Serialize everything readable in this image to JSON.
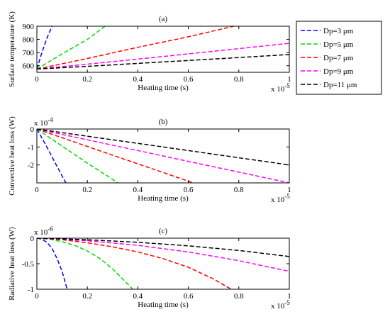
{
  "legend": {
    "entries": [
      {
        "label": "Dp=3 μm",
        "color": "#0000ff"
      },
      {
        "label": "Dp=5 μm",
        "color": "#00dd00"
      },
      {
        "label": "Dp=7 μm",
        "color": "#ff0000"
      },
      {
        "label": "Dp=9 μm",
        "color": "#ff00ff"
      },
      {
        "label": "Dp=11 μm",
        "color": "#000000"
      }
    ],
    "placement": "right"
  },
  "chart_data": [
    {
      "type": "line",
      "title": "(a)",
      "xlabel": "Heating time (s)",
      "ylabel": "Surface temperature (K)",
      "x_multiplier": "x 10",
      "x_exponent": "-5",
      "xlim": [
        0,
        1
      ],
      "ylim": [
        550,
        900
      ],
      "xticks": [
        0,
        0.2,
        0.4,
        0.6,
        0.8,
        1
      ],
      "yticks": [
        600,
        700,
        800,
        900
      ],
      "grid": false,
      "series": [
        {
          "name": "Dp=3 μm",
          "color": "#0000ff",
          "x": [
            0,
            0.02,
            0.04,
            0.06
          ],
          "y": [
            575,
            700,
            810,
            900
          ]
        },
        {
          "name": "Dp=5 μm",
          "color": "#00dd00",
          "x": [
            0,
            0.1,
            0.2,
            0.27
          ],
          "y": [
            575,
            690,
            800,
            900
          ]
        },
        {
          "name": "Dp=7 μm",
          "color": "#ff0000",
          "x": [
            0,
            0.2,
            0.4,
            0.6,
            0.78
          ],
          "y": [
            575,
            655,
            740,
            820,
            900
          ]
        },
        {
          "name": "Dp=9 μm",
          "color": "#ff00ff",
          "x": [
            0,
            0.2,
            0.4,
            0.6,
            0.8,
            1
          ],
          "y": [
            575,
            612,
            650,
            690,
            730,
            770
          ]
        },
        {
          "name": "Dp=11 μm",
          "color": "#000000",
          "x": [
            0,
            0.2,
            0.4,
            0.6,
            0.8,
            1
          ],
          "y": [
            575,
            595,
            618,
            640,
            662,
            685
          ]
        }
      ]
    },
    {
      "type": "line",
      "title": "(b)",
      "xlabel": "Heating time (s)",
      "ylabel": "Convective heat loss (W)",
      "y_multiplier": "x 10",
      "y_exponent": "-4",
      "x_multiplier": "x 10",
      "x_exponent": "-5",
      "xlim": [
        0,
        1
      ],
      "ylim": [
        -3,
        0
      ],
      "xticks": [
        0,
        0.2,
        0.4,
        0.6,
        0.8,
        1
      ],
      "yticks": [
        0,
        -1,
        -2
      ],
      "grid": false,
      "series": [
        {
          "name": "Dp=3 μm",
          "color": "#0000ff",
          "x": [
            0,
            0.03,
            0.06,
            0.09,
            0.115
          ],
          "y": [
            0,
            -0.75,
            -1.55,
            -2.35,
            -3
          ]
        },
        {
          "name": "Dp=5 μm",
          "color": "#00dd00",
          "x": [
            0,
            0.1,
            0.2,
            0.3,
            0.32
          ],
          "y": [
            0,
            -0.95,
            -1.9,
            -2.8,
            -3
          ]
        },
        {
          "name": "Dp=7 μm",
          "color": "#ff0000",
          "x": [
            0,
            0.2,
            0.4,
            0.62
          ],
          "y": [
            0,
            -0.97,
            -1.94,
            -3
          ]
        },
        {
          "name": "Dp=9 μm",
          "color": "#ff00ff",
          "x": [
            0,
            0.25,
            0.5,
            0.75,
            1
          ],
          "y": [
            0,
            -0.75,
            -1.5,
            -2.25,
            -3
          ]
        },
        {
          "name": "Dp=11 μm",
          "color": "#000000",
          "x": [
            0,
            0.25,
            0.5,
            0.75,
            1
          ],
          "y": [
            0,
            -0.5,
            -1,
            -1.5,
            -2
          ]
        }
      ]
    },
    {
      "type": "line",
      "title": "(c)",
      "xlabel": "Heating time (s)",
      "ylabel": "Radiative heat loss (W)",
      "y_multiplier": "x 10",
      "y_exponent": "-6",
      "x_multiplier": "x 10",
      "x_exponent": "-5",
      "xlim": [
        0,
        1
      ],
      "ylim": [
        -1,
        0
      ],
      "xticks": [
        0,
        0.2,
        0.4,
        0.6,
        0.8,
        1
      ],
      "yticks": [
        0,
        -0.5,
        -1
      ],
      "grid": false,
      "series": [
        {
          "name": "Dp=3 μm",
          "color": "#0000ff",
          "x": [
            0,
            0.02,
            0.04,
            0.06,
            0.08,
            0.1,
            0.12
          ],
          "y": [
            0,
            -0.02,
            -0.08,
            -0.2,
            -0.4,
            -0.65,
            -1
          ]
        },
        {
          "name": "Dp=5 μm",
          "color": "#00dd00",
          "x": [
            0,
            0.05,
            0.1,
            0.15,
            0.2,
            0.25,
            0.3,
            0.35,
            0.38
          ],
          "y": [
            0,
            -0.02,
            -0.07,
            -0.14,
            -0.25,
            -0.4,
            -0.6,
            -0.85,
            -1
          ]
        },
        {
          "name": "Dp=7 μm",
          "color": "#ff0000",
          "x": [
            0,
            0.1,
            0.2,
            0.3,
            0.4,
            0.5,
            0.6,
            0.7,
            0.77
          ],
          "y": [
            0,
            -0.03,
            -0.09,
            -0.17,
            -0.27,
            -0.4,
            -0.57,
            -0.8,
            -1
          ]
        },
        {
          "name": "Dp=9 μm",
          "color": "#ff00ff",
          "x": [
            0,
            0.2,
            0.4,
            0.6,
            0.8,
            1
          ],
          "y": [
            0,
            -0.05,
            -0.14,
            -0.27,
            -0.44,
            -0.65
          ]
        },
        {
          "name": "Dp=11 μm",
          "color": "#000000",
          "x": [
            0,
            0.2,
            0.4,
            0.6,
            0.8,
            1
          ],
          "y": [
            0,
            -0.03,
            -0.08,
            -0.15,
            -0.24,
            -0.36
          ]
        }
      ]
    }
  ]
}
